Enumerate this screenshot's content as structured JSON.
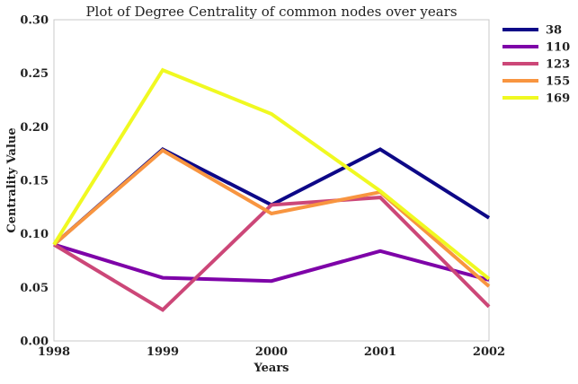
{
  "chart_data": {
    "type": "line",
    "title": "Plot of Degree Centrality of common nodes over years",
    "xlabel": "Years",
    "ylabel": "Centrality Value",
    "x": [
      1998,
      1999,
      2000,
      2001,
      2002
    ],
    "x_tick_labels": [
      "1998",
      "1999",
      "2000",
      "2001",
      "2002"
    ],
    "xlim": [
      1998,
      2002
    ],
    "ylim": [
      0,
      0.3
    ],
    "y_ticks": [
      0,
      0.05,
      0.1,
      0.15,
      0.2,
      0.25,
      0.3
    ],
    "y_tick_labels": [
      "0.00",
      "0.05",
      "0.10",
      "0.15",
      "0.20",
      "0.25",
      "0.30"
    ],
    "grid": false,
    "legend_position": "outside-top-right",
    "series": [
      {
        "name": "38",
        "color": "#0d0887",
        "values": [
          0.09,
          0.179,
          0.127,
          0.179,
          0.115
        ]
      },
      {
        "name": "110",
        "color": "#7e03a8",
        "values": [
          0.09,
          0.059,
          0.056,
          0.084,
          0.057
        ]
      },
      {
        "name": "123",
        "color": "#cc4778",
        "values": [
          0.09,
          0.029,
          0.127,
          0.134,
          0.032
        ]
      },
      {
        "name": "155",
        "color": "#f89540",
        "values": [
          0.09,
          0.178,
          0.119,
          0.139,
          0.051
        ]
      },
      {
        "name": "169",
        "color": "#f0f921",
        "values": [
          0.09,
          0.253,
          0.212,
          0.14,
          0.058
        ]
      }
    ]
  }
}
